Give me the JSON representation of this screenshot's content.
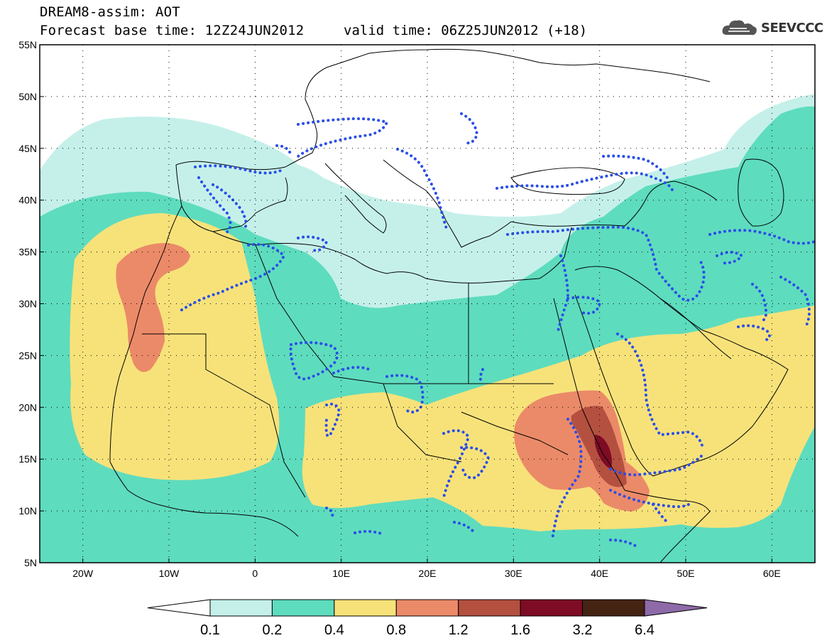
{
  "header": {
    "line1": "DREAM8-assim: AOT",
    "base_time_label": "Forecast base time: 12Z24JUN2012",
    "valid_time_label": "valid time: 06Z25JUN2012 (+18)",
    "logo_text": "SEEVCCC"
  },
  "map": {
    "lat_labels": [
      "55N",
      "50N",
      "45N",
      "40N",
      "35N",
      "30N",
      "25N",
      "20N",
      "15N",
      "10N",
      "5N"
    ],
    "lon_labels": [
      "20W",
      "10W",
      "0",
      "10E",
      "20E",
      "30E",
      "40E",
      "50E",
      "60E"
    ],
    "lon_range": [
      -25,
      65
    ],
    "lat_range": [
      5,
      55
    ]
  },
  "colorbar": {
    "tick_labels": [
      "0.1",
      "0.2",
      "0.4",
      "0.8",
      "1.2",
      "1.6",
      "3.2",
      "6.4"
    ],
    "colors": [
      "#ffffff",
      "#c5f0ea",
      "#5edcbe",
      "#f7e27a",
      "#eb8a68",
      "#b45040",
      "#7e0c24",
      "#452414",
      "#8e6aa8"
    ]
  }
}
